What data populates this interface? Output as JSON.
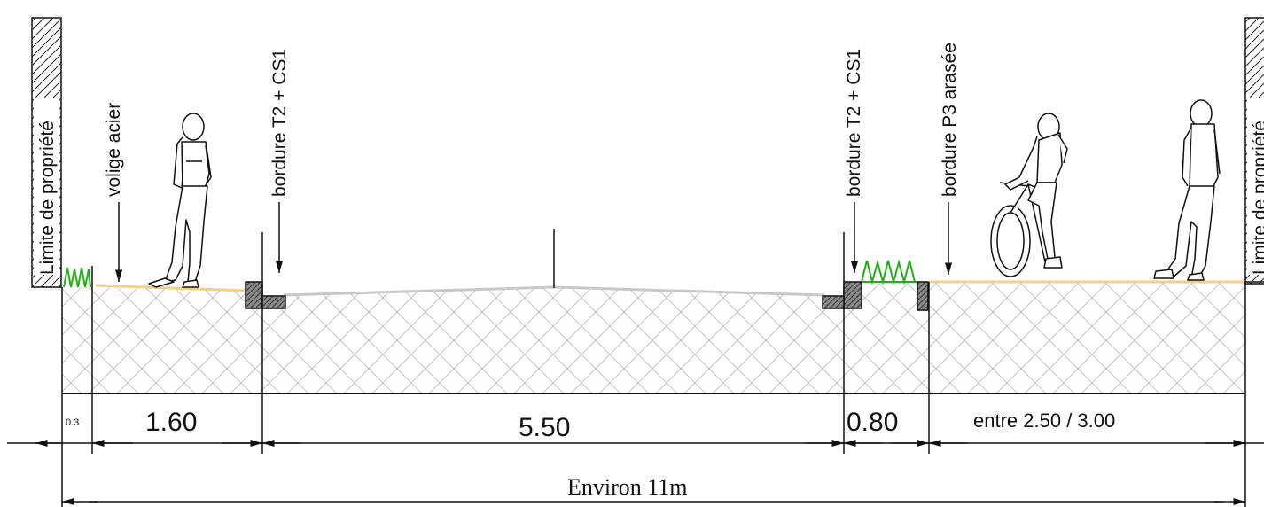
{
  "labels": {
    "limit_left": "Limite de propriété",
    "limit_right": "Limite de propriété",
    "volige": "volige acier",
    "bordure_left": "bordure T2  + CS1",
    "bordure_right": "bordure T2  + CS1",
    "bordure_p3": "bordure P3 arasée"
  },
  "dimensions": {
    "d1": "0.3",
    "d2": "1.60",
    "d3": "5.50",
    "d4": "0.80",
    "d5": "entre 2.50 / 3.00",
    "total": "Environ  11m"
  },
  "colors": {
    "grass": "#22b014",
    "surface": "#f3cf8a",
    "curb": "#6d6d6d",
    "hatch": "#bdbdbd",
    "line": "#111111"
  },
  "icons": [
    "pedestrian-figure",
    "cyclist-figure",
    "pedestrian-figure-right",
    "grass-tuft",
    "curb-block"
  ]
}
